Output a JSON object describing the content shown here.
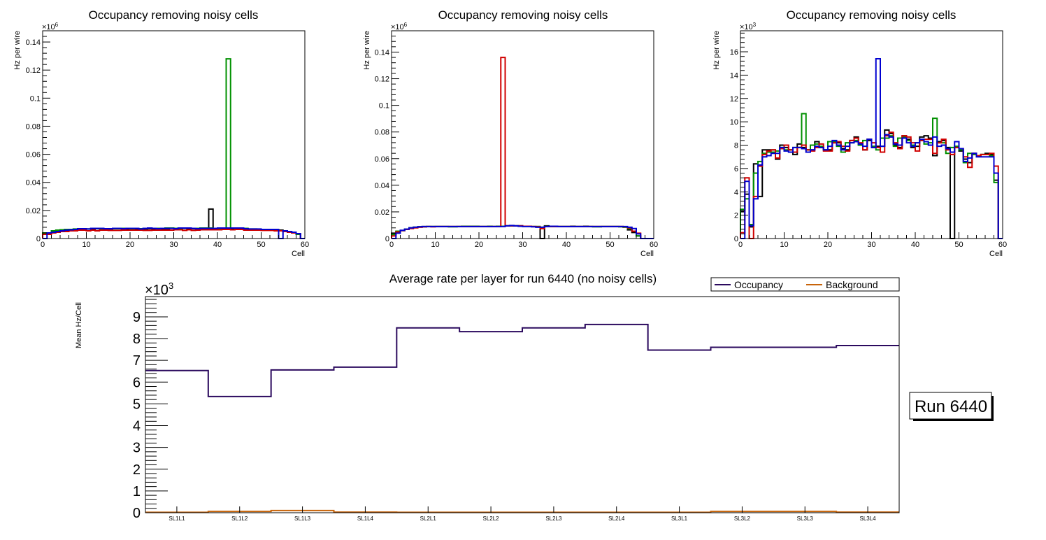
{
  "chart_data": [
    {
      "type": "bar",
      "style": "step-histogram",
      "title": "Occupancy removing noisy cells",
      "xlabel": "Cell",
      "ylabel": "Hz per wire",
      "y_multiplier": "×10^6",
      "exp_base": "×10",
      "exp_power": "6",
      "xlim": [
        0,
        60
      ],
      "ylim": [
        0,
        0.148
      ],
      "x_ticks": [
        "0",
        "10",
        "20",
        "30",
        "40",
        "50",
        "60"
      ],
      "y_ticks": [
        "0",
        "0.02",
        "0.04",
        "0.06",
        "0.08",
        "0.1",
        "0.12",
        "0.14"
      ],
      "y_tick_values": [
        0,
        0.02,
        0.04,
        0.06,
        0.08,
        0.1,
        0.12,
        0.14
      ],
      "grid": false,
      "series": [
        {
          "name": "black",
          "color": "#000000",
          "values": [
            0.003,
            0.004,
            0.005,
            0.0055,
            0.006,
            0.006,
            0.0065,
            0.0065,
            0.007,
            0.007,
            0.0068,
            0.007,
            0.007,
            0.007,
            0.0068,
            0.0068,
            0.007,
            0.007,
            0.007,
            0.007,
            0.007,
            0.007,
            0.0068,
            0.0068,
            0.007,
            0.007,
            0.007,
            0.007,
            0.007,
            0.0072,
            0.0072,
            0.0072,
            0.0072,
            0.0072,
            0.007,
            0.007,
            0.007,
            0.007,
            0.021,
            0.007,
            0.0072,
            0.0072,
            0.007,
            0.007,
            0.0072,
            0.0072,
            0.007,
            0.0065,
            0.0065,
            0.0065,
            0.0062,
            0.006,
            0.006,
            0.006,
            0.006,
            0.005,
            0.0045,
            0.004,
            0.003,
            0.0
          ]
        },
        {
          "name": "green",
          "color": "#009000",
          "values": [
            0.004,
            0.004,
            0.0055,
            0.006,
            0.0062,
            0.0065,
            0.0065,
            0.0068,
            0.007,
            0.007,
            0.0068,
            0.0072,
            0.0072,
            0.007,
            0.007,
            0.007,
            0.007,
            0.007,
            0.0072,
            0.0072,
            0.007,
            0.0072,
            0.007,
            0.0072,
            0.0075,
            0.0072,
            0.0072,
            0.0072,
            0.0075,
            0.0075,
            0.0072,
            0.0072,
            0.0075,
            0.0075,
            0.0072,
            0.0072,
            0.0075,
            0.0075,
            0.0075,
            0.0072,
            0.0072,
            0.0075,
            0.128,
            0.0075,
            0.0075,
            0.0075,
            0.0072,
            0.0068,
            0.0068,
            0.0065,
            0.0062,
            0.006,
            0.006,
            0.006,
            0.0055,
            0.005,
            0.0045,
            0.004,
            0.003,
            0.0
          ]
        },
        {
          "name": "red",
          "color": "#d00000",
          "values": [
            0.003,
            0.003,
            0.004,
            0.0045,
            0.005,
            0.005,
            0.0055,
            0.0055,
            0.006,
            0.006,
            0.0055,
            0.006,
            0.0055,
            0.006,
            0.006,
            0.0058,
            0.0058,
            0.0058,
            0.006,
            0.006,
            0.006,
            0.006,
            0.006,
            0.0058,
            0.0058,
            0.006,
            0.006,
            0.006,
            0.006,
            0.006,
            0.0062,
            0.0062,
            0.0058,
            0.0062,
            0.0058,
            0.006,
            0.0062,
            0.0062,
            0.0062,
            0.0062,
            0.0062,
            0.0065,
            0.0065,
            0.0062,
            0.0065,
            0.0065,
            0.006,
            0.006,
            0.006,
            0.006,
            0.0058,
            0.0058,
            0.0058,
            0.0055,
            0.0055,
            0.005,
            0.0045,
            0.004,
            0.0035,
            0.0
          ]
        },
        {
          "name": "blue",
          "color": "#0000d0",
          "values": [
            0.0,
            0.004,
            0.0045,
            0.005,
            0.0055,
            0.006,
            0.0062,
            0.0065,
            0.007,
            0.007,
            0.0068,
            0.0072,
            0.0072,
            0.0072,
            0.007,
            0.007,
            0.0072,
            0.0072,
            0.007,
            0.0072,
            0.0072,
            0.0072,
            0.0068,
            0.0072,
            0.0075,
            0.0072,
            0.007,
            0.0072,
            0.0072,
            0.0072,
            0.007,
            0.0075,
            0.0075,
            0.0075,
            0.0072,
            0.007,
            0.0072,
            0.0072,
            0.0072,
            0.0072,
            0.0075,
            0.0075,
            0.0075,
            0.0075,
            0.0075,
            0.0075,
            0.007,
            0.0068,
            0.0068,
            0.0068,
            0.0065,
            0.0065,
            0.0065,
            0.0065,
            0.0,
            0.0055,
            0.005,
            0.0045,
            0.0035,
            0.0
          ]
        }
      ]
    },
    {
      "type": "bar",
      "style": "step-histogram",
      "title": "Occupancy removing noisy cells",
      "xlabel": "Cell",
      "ylabel": "Hz per wire",
      "y_multiplier": "×10^6",
      "exp_base": "×10",
      "exp_power": "6",
      "xlim": [
        0,
        60
      ],
      "ylim": [
        0,
        0.156
      ],
      "x_ticks": [
        "0",
        "10",
        "20",
        "30",
        "40",
        "50",
        "60"
      ],
      "y_ticks": [
        "0",
        "0.02",
        "0.04",
        "0.06",
        "0.08",
        "0.1",
        "0.12",
        "0.14"
      ],
      "y_tick_values": [
        0,
        0.02,
        0.04,
        0.06,
        0.08,
        0.1,
        0.12,
        0.14
      ],
      "grid": false,
      "series": [
        {
          "name": "black",
          "color": "#000000",
          "values": [
            0.004,
            0.005,
            0.006,
            0.007,
            0.008,
            0.0085,
            0.0088,
            0.009,
            0.009,
            0.009,
            0.009,
            0.009,
            0.009,
            0.009,
            0.009,
            0.009,
            0.009,
            0.009,
            0.009,
            0.009,
            0.009,
            0.009,
            0.009,
            0.009,
            0.0092,
            0.0092,
            0.0095,
            0.0095,
            0.0095,
            0.0095,
            0.0092,
            0.0092,
            0.009,
            0.009,
            0.0,
            0.0095,
            0.009,
            0.009,
            0.009,
            0.009,
            0.009,
            0.0092,
            0.009,
            0.009,
            0.0092,
            0.009,
            0.009,
            0.009,
            0.009,
            0.009,
            0.009,
            0.009,
            0.009,
            0.0088,
            0.0065,
            0.0045,
            0.002,
            0.0,
            0.0,
            0.0
          ]
        },
        {
          "name": "green",
          "color": "#009000",
          "values": [
            0.003,
            0.0055,
            0.006,
            0.007,
            0.008,
            0.0085,
            0.0088,
            0.0088,
            0.009,
            0.009,
            0.009,
            0.009,
            0.009,
            0.0088,
            0.0088,
            0.009,
            0.0092,
            0.0092,
            0.0092,
            0.0092,
            0.009,
            0.009,
            0.0092,
            0.009,
            0.0092,
            0.0092,
            0.0095,
            0.0095,
            0.0095,
            0.0095,
            0.0092,
            0.0092,
            0.009,
            0.009,
            0.0085,
            0.0092,
            0.009,
            0.0092,
            0.009,
            0.009,
            0.009,
            0.009,
            0.009,
            0.009,
            0.009,
            0.009,
            0.0088,
            0.0088,
            0.009,
            0.009,
            0.009,
            0.009,
            0.0088,
            0.0085,
            0.0075,
            0.0055,
            0.002,
            0.0,
            0.0,
            0.0
          ]
        },
        {
          "name": "red",
          "color": "#d00000",
          "values": [
            0.002,
            0.005,
            0.006,
            0.0068,
            0.0075,
            0.008,
            0.0085,
            0.0088,
            0.009,
            0.0088,
            0.009,
            0.009,
            0.009,
            0.009,
            0.009,
            0.009,
            0.009,
            0.009,
            0.009,
            0.009,
            0.009,
            0.009,
            0.009,
            0.009,
            0.009,
            0.136,
            0.0095,
            0.0095,
            0.0095,
            0.0095,
            0.0092,
            0.0092,
            0.009,
            0.0088,
            0.0075,
            0.009,
            0.009,
            0.009,
            0.009,
            0.009,
            0.009,
            0.009,
            0.009,
            0.009,
            0.009,
            0.009,
            0.009,
            0.009,
            0.009,
            0.009,
            0.009,
            0.009,
            0.009,
            0.0088,
            0.008,
            0.0055,
            0.004,
            0.0,
            0.0,
            0.0
          ]
        },
        {
          "name": "blue",
          "color": "#0000d0",
          "values": [
            0.0,
            0.004,
            0.0062,
            0.007,
            0.008,
            0.0085,
            0.0088,
            0.009,
            0.009,
            0.009,
            0.009,
            0.009,
            0.009,
            0.009,
            0.009,
            0.009,
            0.009,
            0.009,
            0.009,
            0.009,
            0.009,
            0.009,
            0.009,
            0.009,
            0.009,
            0.009,
            0.0095,
            0.0098,
            0.0095,
            0.0092,
            0.009,
            0.009,
            0.0088,
            0.0085,
            0.0085,
            0.009,
            0.0092,
            0.0092,
            0.009,
            0.009,
            0.009,
            0.009,
            0.009,
            0.009,
            0.009,
            0.009,
            0.009,
            0.009,
            0.009,
            0.009,
            0.009,
            0.009,
            0.009,
            0.009,
            0.0085,
            0.0075,
            0.0035,
            0.0,
            0.0,
            0.0
          ]
        }
      ]
    },
    {
      "type": "bar",
      "style": "step-histogram",
      "title": "Occupancy removing noisy cells",
      "xlabel": "Cell",
      "ylabel": "Hz per wire",
      "y_multiplier": "×10^3",
      "exp_base": "×10",
      "exp_power": "3",
      "xlim": [
        0,
        60
      ],
      "ylim": [
        0,
        17.8
      ],
      "x_ticks": [
        "0",
        "10",
        "20",
        "30",
        "40",
        "50",
        "60"
      ],
      "y_ticks": [
        "0",
        "2",
        "4",
        "6",
        "8",
        "10",
        "12",
        "14",
        "16"
      ],
      "y_tick_values": [
        0,
        2,
        4,
        6,
        8,
        10,
        12,
        14,
        16
      ],
      "grid": false,
      "series": [
        {
          "name": "black",
          "color": "#000000",
          "values": [
            2.3,
            3.8,
            1.0,
            6.4,
            3.6,
            7.6,
            7.6,
            7.6,
            6.8,
            8.0,
            7.8,
            7.6,
            7.2,
            8.1,
            7.8,
            7.6,
            7.6,
            8.3,
            7.8,
            7.6,
            7.6,
            8.2,
            8.2,
            7.7,
            7.6,
            8.4,
            8.7,
            8.0,
            7.6,
            8.4,
            7.8,
            7.9,
            7.9,
            9.3,
            9.0,
            8.0,
            7.8,
            8.8,
            8.5,
            7.8,
            7.9,
            8.7,
            8.8,
            8.6,
            7.1,
            8.3,
            8.4,
            7.8,
            0.0,
            7.8,
            7.5,
            6.8,
            6.5,
            7.3,
            7.1,
            7.2,
            7.3,
            7.2,
            5.0,
            0.0
          ]
        },
        {
          "name": "green",
          "color": "#009000",
          "values": [
            2.5,
            3.4,
            1.2,
            5.6,
            6.6,
            7.3,
            7.4,
            7.4,
            7.5,
            7.8,
            7.6,
            7.6,
            7.8,
            7.8,
            10.7,
            7.6,
            8.0,
            8.1,
            7.9,
            7.6,
            8.3,
            8.3,
            7.9,
            7.4,
            8.2,
            8.2,
            8.4,
            8.0,
            8.4,
            8.5,
            7.9,
            7.6,
            8.6,
            8.6,
            8.8,
            7.9,
            8.6,
            8.7,
            8.4,
            8.0,
            8.2,
            8.4,
            8.1,
            8.2,
            10.3,
            8.2,
            8.2,
            7.3,
            7.8,
            7.9,
            7.6,
            6.5,
            7.3,
            7.2,
            7.1,
            7.2,
            7.2,
            7.1,
            4.8,
            0.0
          ]
        },
        {
          "name": "red",
          "color": "#d00000",
          "values": [
            0.5,
            5.2,
            0.0,
            3.6,
            6.2,
            7.2,
            7.5,
            7.6,
            6.9,
            7.7,
            8.0,
            7.6,
            7.4,
            7.8,
            8.0,
            7.6,
            7.5,
            7.8,
            8.1,
            7.5,
            7.5,
            8.2,
            8.3,
            7.9,
            7.5,
            8.4,
            8.6,
            8.2,
            7.6,
            8.5,
            8.2,
            7.8,
            7.4,
            8.8,
            9.1,
            8.2,
            7.7,
            8.8,
            8.7,
            8.2,
            7.5,
            8.4,
            8.5,
            8.5,
            7.3,
            8.2,
            8.5,
            7.6,
            7.2,
            7.8,
            7.7,
            7.0,
            6.1,
            7.3,
            7.1,
            7.2,
            7.2,
            7.3,
            6.2,
            0.0
          ]
        },
        {
          "name": "blue",
          "color": "#0000d0",
          "values": [
            0.0,
            4.9,
            1.1,
            3.4,
            6.3,
            7.0,
            7.1,
            7.3,
            7.3,
            7.8,
            7.5,
            7.4,
            7.8,
            7.8,
            7.7,
            7.4,
            7.6,
            7.9,
            7.8,
            7.6,
            7.9,
            8.4,
            8.0,
            7.6,
            7.9,
            8.2,
            8.3,
            8.1,
            7.9,
            8.5,
            7.8,
            15.4,
            7.9,
            8.9,
            8.7,
            8.1,
            8.0,
            8.6,
            8.2,
            7.9,
            8.2,
            8.5,
            8.3,
            8.0,
            8.7,
            7.9,
            8.0,
            7.7,
            7.4,
            8.3,
            7.7,
            6.6,
            6.9,
            7.3,
            7.0,
            7.0,
            7.0,
            7.0,
            5.6,
            0.0
          ]
        }
      ]
    },
    {
      "type": "line",
      "style": "step-histogram",
      "title": "Average rate per layer for run 6440 (no noisy cells)",
      "xlabel": "",
      "ylabel": "Mean Hz/Cell",
      "y_multiplier": "×10^3",
      "exp_base": "×10",
      "exp_power": "3",
      "categories": [
        "SL1L1",
        "SL1L2",
        "SL1L3",
        "SL1L4",
        "SL2L1",
        "SL2L2",
        "SL2L3",
        "SL2L4",
        "SL3L1",
        "SL3L2",
        "SL3L3",
        "SL3L4"
      ],
      "ylim": [
        0,
        9.93
      ],
      "y_ticks": [
        "0",
        "1",
        "2",
        "3",
        "4",
        "5",
        "6",
        "7",
        "8",
        "9"
      ],
      "y_tick_values": [
        0,
        1,
        2,
        3,
        4,
        5,
        6,
        7,
        8,
        9
      ],
      "grid": false,
      "legend": {
        "position": "top-right",
        "entries": [
          "Occupancy",
          "Background"
        ]
      },
      "series": [
        {
          "name": "Occupancy",
          "color": "#2b0a5e",
          "values": [
            6.53,
            5.34,
            6.56,
            6.69,
            8.49,
            8.32,
            8.49,
            8.65,
            7.47,
            7.6,
            7.6,
            7.68
          ]
        },
        {
          "name": "Background",
          "color": "#c8640a",
          "values": [
            0.02,
            0.06,
            0.1,
            0.03,
            0.02,
            0.02,
            0.02,
            0.02,
            0.02,
            0.06,
            0.06,
            0.03
          ]
        }
      ],
      "annotation": "Run 6440"
    }
  ]
}
